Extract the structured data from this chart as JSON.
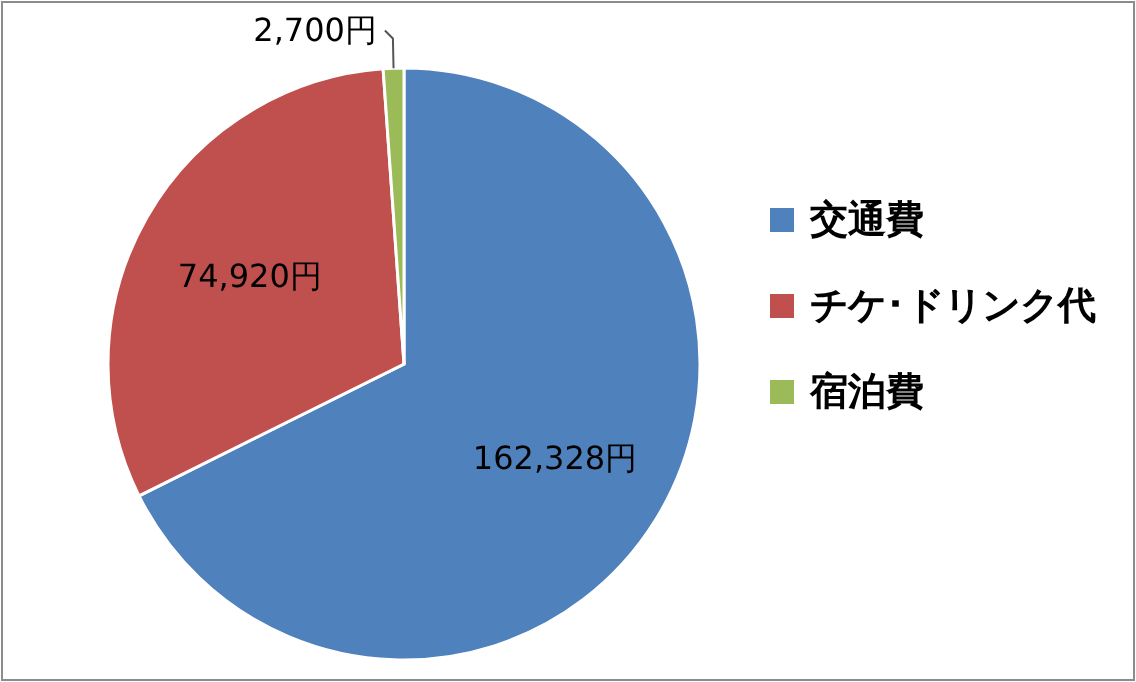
{
  "chart_data": {
    "type": "pie",
    "categories": [
      "交通費",
      "チケ･ドリンク代",
      "宿泊費"
    ],
    "values": [
      162328,
      74920,
      2700
    ],
    "colors": [
      "#4f81bd",
      "#c0504d",
      "#9bbb59"
    ],
    "value_labels": [
      "162,328円",
      "74,920円",
      "2,700円"
    ],
    "legend": "right"
  }
}
